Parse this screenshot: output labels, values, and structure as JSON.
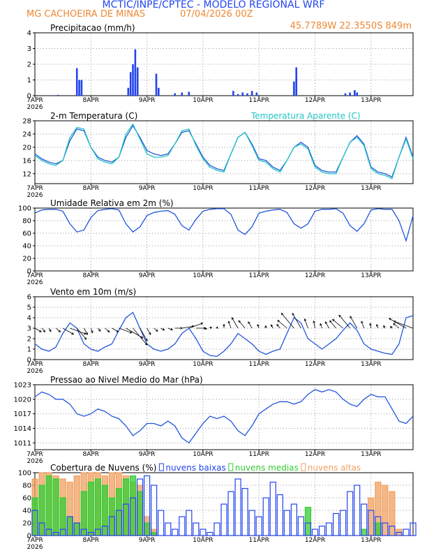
{
  "header": {
    "title": "MCTIC/INPE/CPTEC - MODELO REGIONAL WRF",
    "location": "MG CACHOEIRA DE MINAS",
    "date": "07/04/2026 00Z",
    "coords": "45.7789W 22.3550S 849m"
  },
  "chart_data": [
    {
      "type": "bar",
      "title": "Precipitacao (mm/h)",
      "color": "#2244ee",
      "grid": true,
      "x": [
        10,
        18,
        19,
        20,
        40,
        41,
        42,
        43,
        44,
        52,
        53,
        60,
        63,
        66,
        85,
        87,
        89,
        91,
        93,
        95,
        111,
        112,
        133,
        135,
        137,
        138
      ],
      "values": [
        0.05,
        1.75,
        1,
        1,
        0.5,
        1.5,
        2,
        2.95,
        1.8,
        1.4,
        0.5,
        0.15,
        0.2,
        0.25,
        0.3,
        0.1,
        0.2,
        0.15,
        0.3,
        0.2,
        0.9,
        1.8,
        0.15,
        0.2,
        0.35,
        0.2
      ],
      "xlim": [
        0,
        162
      ],
      "xticks": [
        {
          "value": 0,
          "label": "7APR\n2026"
        },
        {
          "value": 24,
          "label": "8APR"
        },
        {
          "value": 48,
          "label": "9APR"
        },
        {
          "value": 72,
          "label": "10APR"
        },
        {
          "value": 96,
          "label": "11APR"
        },
        {
          "value": 120,
          "label": "12APR"
        },
        {
          "value": 144,
          "label": "13APR"
        }
      ],
      "ylim": [
        0,
        4
      ],
      "yticks": [
        0,
        1,
        2,
        3,
        4
      ]
    },
    {
      "type": "line",
      "title": "2-m Temperatura (C)",
      "grid": true,
      "x": [
        0,
        3,
        6,
        9,
        12,
        15,
        18,
        21,
        24,
        27,
        30,
        33,
        36,
        39,
        42,
        45,
        48,
        51,
        54,
        57,
        60,
        63,
        66,
        69,
        72,
        75,
        78,
        81,
        84,
        87,
        90,
        93,
        96,
        99,
        102,
        105,
        108,
        111,
        114,
        117,
        120,
        123,
        126,
        129,
        132,
        135,
        138,
        141,
        144,
        147,
        150,
        153,
        156,
        159,
        162
      ],
      "series": [
        {
          "color": "#2255dd",
          "values": [
            18,
            16.5,
            15.5,
            15,
            16,
            22,
            25.5,
            25,
            20,
            17,
            16,
            15.5,
            17,
            23,
            26.5,
            23,
            19,
            18,
            17.5,
            18,
            21,
            24.5,
            25,
            21,
            17,
            14.5,
            13.5,
            13,
            18,
            23,
            24.5,
            21,
            16.5,
            16,
            14,
            13,
            16,
            20,
            21.5,
            20,
            14.5,
            13,
            12.5,
            12.5,
            17,
            21.5,
            23.5,
            21,
            14,
            12.5,
            12,
            11,
            17,
            23,
            17
          ]
        },
        {
          "name": "Temperatura Aparente (C)",
          "color": "#22c4c4",
          "values": [
            17.5,
            16,
            15,
            14.5,
            16,
            23,
            26,
            25.5,
            20,
            16.5,
            15.5,
            15,
            17,
            24,
            27,
            22.5,
            18,
            17,
            17,
            17.5,
            21,
            25,
            25.5,
            20.5,
            16.5,
            14,
            13,
            12.5,
            18,
            23,
            24.5,
            20.5,
            16,
            15.5,
            13.5,
            12.5,
            16,
            20,
            21,
            19.5,
            14,
            12.5,
            12,
            12,
            17,
            21.5,
            23,
            20.5,
            13.5,
            12,
            11.5,
            10.5,
            17,
            22.5,
            16.5
          ]
        }
      ],
      "xlim": [
        0,
        162
      ],
      "xticks": [
        {
          "value": 0,
          "label": "7APR\n2026"
        },
        {
          "value": 24,
          "label": "8APR"
        },
        {
          "value": 48,
          "label": "9APR"
        },
        {
          "value": 72,
          "label": "10APR"
        },
        {
          "value": 96,
          "label": "11APR"
        },
        {
          "value": 120,
          "label": "12APR"
        },
        {
          "value": 144,
          "label": "13APR"
        }
      ],
      "ylim": [
        9,
        28
      ],
      "yticks": [
        12,
        16,
        20,
        24,
        28
      ]
    },
    {
      "type": "line",
      "title": "Umidade Relativa em 2m (%)",
      "grid": true,
      "x": [
        0,
        3,
        6,
        9,
        12,
        15,
        18,
        21,
        24,
        27,
        30,
        33,
        36,
        39,
        42,
        45,
        48,
        51,
        54,
        57,
        60,
        63,
        66,
        69,
        72,
        75,
        78,
        81,
        84,
        87,
        90,
        93,
        96,
        99,
        102,
        105,
        108,
        111,
        114,
        117,
        120,
        123,
        126,
        129,
        132,
        135,
        138,
        141,
        144,
        147,
        150,
        153,
        156,
        159,
        162
      ],
      "series": [
        {
          "color": "#2255dd",
          "values": [
            92,
            97,
            98,
            98,
            95,
            75,
            62,
            65,
            85,
            96,
            98,
            99,
            97,
            75,
            62,
            70,
            88,
            93,
            95,
            96,
            90,
            72,
            65,
            82,
            95,
            98,
            99,
            99,
            90,
            65,
            58,
            70,
            92,
            95,
            97,
            98,
            93,
            75,
            68,
            75,
            95,
            98,
            98,
            99,
            92,
            72,
            63,
            75,
            97,
            99,
            98,
            98,
            80,
            48,
            88
          ]
        }
      ],
      "xlim": [
        0,
        162
      ],
      "xticks": [
        {
          "value": 0,
          "label": "7APR\n2026"
        },
        {
          "value": 24,
          "label": "8APR"
        },
        {
          "value": 48,
          "label": "9APR"
        },
        {
          "value": 72,
          "label": "10APR"
        },
        {
          "value": 96,
          "label": "11APR"
        },
        {
          "value": 120,
          "label": "12APR"
        },
        {
          "value": 144,
          "label": "13APR"
        }
      ],
      "ylim": [
        0,
        100
      ],
      "yticks": [
        0,
        20,
        40,
        60,
        80,
        100
      ]
    },
    {
      "type": "wind",
      "title": "Vento em 10m (m/s)",
      "grid": true,
      "color": "#2255dd",
      "arrow_color": "#000000",
      "x": [
        0,
        3,
        6,
        9,
        12,
        15,
        18,
        21,
        24,
        27,
        30,
        33,
        36,
        39,
        42,
        45,
        48,
        51,
        54,
        57,
        60,
        63,
        66,
        69,
        72,
        75,
        78,
        81,
        84,
        87,
        90,
        93,
        96,
        99,
        102,
        105,
        108,
        111,
        114,
        117,
        120,
        123,
        126,
        129,
        132,
        135,
        138,
        141,
        144,
        147,
        150,
        153,
        156,
        159,
        162
      ],
      "values": [
        1.5,
        1,
        0.8,
        1.2,
        2.5,
        3.5,
        3,
        1.5,
        1,
        0.8,
        1.2,
        1.5,
        2.8,
        4,
        4.5,
        3,
        1.5,
        1,
        0.8,
        1,
        1.5,
        2.5,
        3,
        2,
        0.8,
        0.4,
        0.3,
        0.8,
        1.5,
        2.5,
        2,
        1.5,
        0.8,
        0.5,
        0.8,
        1,
        2.5,
        4,
        3.5,
        2,
        1.5,
        1,
        1.5,
        2,
        2.8,
        3.5,
        2.8,
        1.5,
        1,
        0.8,
        0.6,
        0.5,
        1.5,
        4,
        4.2
      ],
      "direction": [
        300,
        320,
        330,
        310,
        300,
        290,
        320,
        330,
        340,
        320,
        310,
        300,
        290,
        300,
        320,
        330,
        330,
        310,
        300,
        290,
        270,
        260,
        250,
        270,
        280,
        240,
        200,
        180,
        160,
        150,
        140,
        150,
        160,
        170,
        150,
        140,
        130,
        140,
        150,
        160,
        170,
        160,
        150,
        140,
        130,
        140,
        150,
        160,
        170,
        160,
        150,
        140,
        130,
        120,
        110
      ],
      "xlim": [
        0,
        162
      ],
      "xticks": [
        {
          "value": 0,
          "label": "7APR\n2026"
        },
        {
          "value": 24,
          "label": "8APR"
        },
        {
          "value": 48,
          "label": "9APR"
        },
        {
          "value": 72,
          "label": "10APR"
        },
        {
          "value": 96,
          "label": "11APR"
        },
        {
          "value": 120,
          "label": "12APR"
        },
        {
          "value": 144,
          "label": "13APR"
        }
      ],
      "ylim": [
        0,
        6
      ],
      "yticks": [
        0,
        1,
        2,
        3,
        4,
        5,
        6
      ]
    },
    {
      "type": "line",
      "title": "Pressao ao Nivel Medio do Mar (hPa)",
      "grid": true,
      "x": [
        0,
        3,
        6,
        9,
        12,
        15,
        18,
        21,
        24,
        27,
        30,
        33,
        36,
        39,
        42,
        45,
        48,
        51,
        54,
        57,
        60,
        63,
        66,
        69,
        72,
        75,
        78,
        81,
        84,
        87,
        90,
        93,
        96,
        99,
        102,
        105,
        108,
        111,
        114,
        117,
        120,
        123,
        126,
        129,
        132,
        135,
        138,
        141,
        144,
        147,
        150,
        153,
        156,
        159,
        162
      ],
      "series": [
        {
          "color": "#2255dd",
          "values": [
            1020.5,
            1021.5,
            1021,
            1020,
            1020,
            1019,
            1017,
            1016.5,
            1017,
            1018,
            1017.5,
            1016.5,
            1016,
            1014.5,
            1012.5,
            1013.5,
            1015,
            1015,
            1014.5,
            1015.5,
            1014.5,
            1012,
            1011,
            1013,
            1015,
            1016.5,
            1016,
            1016.5,
            1015.5,
            1013.5,
            1012.5,
            1014.5,
            1017,
            1018,
            1019,
            1019.5,
            1019.5,
            1019,
            1019.5,
            1021,
            1022,
            1021.5,
            1022,
            1021.5,
            1020,
            1019,
            1018.5,
            1020,
            1021,
            1020.5,
            1020.5,
            1018,
            1015.5,
            1015,
            1016.5
          ]
        }
      ],
      "xlim": [
        0,
        162
      ],
      "xticks": [
        {
          "value": 0,
          "label": "7APR\n2026"
        },
        {
          "value": 24,
          "label": "8APR"
        },
        {
          "value": 48,
          "label": "9APR"
        },
        {
          "value": 72,
          "label": "10APR"
        },
        {
          "value": 96,
          "label": "11APR"
        },
        {
          "value": 120,
          "label": "12APR"
        },
        {
          "value": 144,
          "label": "13APR"
        }
      ],
      "ylim": [
        1009.6,
        1023
      ],
      "yticks": [
        1011,
        1014,
        1017,
        1020,
        1023
      ]
    },
    {
      "type": "cloud",
      "title": "Cobertura de Nuvens (%)",
      "grid": true,
      "x": [
        0,
        3,
        6,
        9,
        12,
        15,
        18,
        21,
        24,
        27,
        30,
        33,
        36,
        39,
        42,
        45,
        48,
        51,
        54,
        57,
        60,
        63,
        66,
        69,
        72,
        75,
        78,
        81,
        84,
        87,
        90,
        93,
        96,
        99,
        102,
        105,
        108,
        111,
        114,
        117,
        120,
        123,
        126,
        129,
        132,
        135,
        138,
        141,
        144,
        147,
        150,
        153,
        156,
        159,
        162
      ],
      "series": [
        {
          "name": "nuvens baixas",
          "color": "#2244ee",
          "values": [
            40,
            20,
            10,
            5,
            10,
            30,
            20,
            10,
            5,
            10,
            15,
            30,
            40,
            50,
            60,
            90,
            95,
            80,
            40,
            20,
            10,
            30,
            40,
            20,
            10,
            5,
            20,
            50,
            70,
            90,
            75,
            40,
            30,
            60,
            85,
            65,
            40,
            50,
            30,
            20,
            10,
            15,
            20,
            35,
            40,
            70,
            80,
            50,
            40,
            30,
            20,
            15,
            5,
            10,
            20
          ]
        },
        {
          "name": "nuvens medias",
          "color": "#33cc33",
          "values": [
            60,
            80,
            95,
            90,
            60,
            30,
            20,
            70,
            85,
            90,
            80,
            60,
            75,
            90,
            95,
            70,
            20,
            5,
            0,
            0,
            0,
            0,
            0,
            0,
            0,
            0,
            0,
            0,
            0,
            0,
            0,
            0,
            0,
            0,
            0,
            0,
            0,
            0,
            0,
            45,
            0,
            0,
            0,
            0,
            0,
            0,
            0,
            10,
            0,
            20,
            0,
            0,
            0,
            0,
            0
          ]
        },
        {
          "name": "nuvens altas",
          "color": "#f0a060",
          "values": [
            90,
            100,
            100,
            95,
            90,
            85,
            95,
            100,
            100,
            100,
            95,
            100,
            100,
            95,
            85,
            80,
            30,
            10,
            0,
            0,
            0,
            0,
            0,
            0,
            0,
            0,
            0,
            0,
            0,
            0,
            0,
            0,
            0,
            0,
            0,
            0,
            0,
            0,
            0,
            0,
            0,
            0,
            0,
            0,
            0,
            0,
            0,
            0,
            60,
            85,
            80,
            70,
            10,
            0,
            0
          ]
        }
      ],
      "xlim": [
        0,
        162
      ],
      "xticks": [
        {
          "value": 0,
          "label": "7APR\n2026"
        },
        {
          "value": 24,
          "label": "8APR"
        },
        {
          "value": 48,
          "label": "9APR"
        },
        {
          "value": 72,
          "label": "10APR"
        },
        {
          "value": 96,
          "label": "11APR"
        },
        {
          "value": 120,
          "label": "12APR"
        },
        {
          "value": 144,
          "label": "13APR"
        }
      ],
      "ylim": [
        0,
        100
      ],
      "yticks": [
        0,
        20,
        40,
        60,
        80,
        100
      ]
    }
  ]
}
